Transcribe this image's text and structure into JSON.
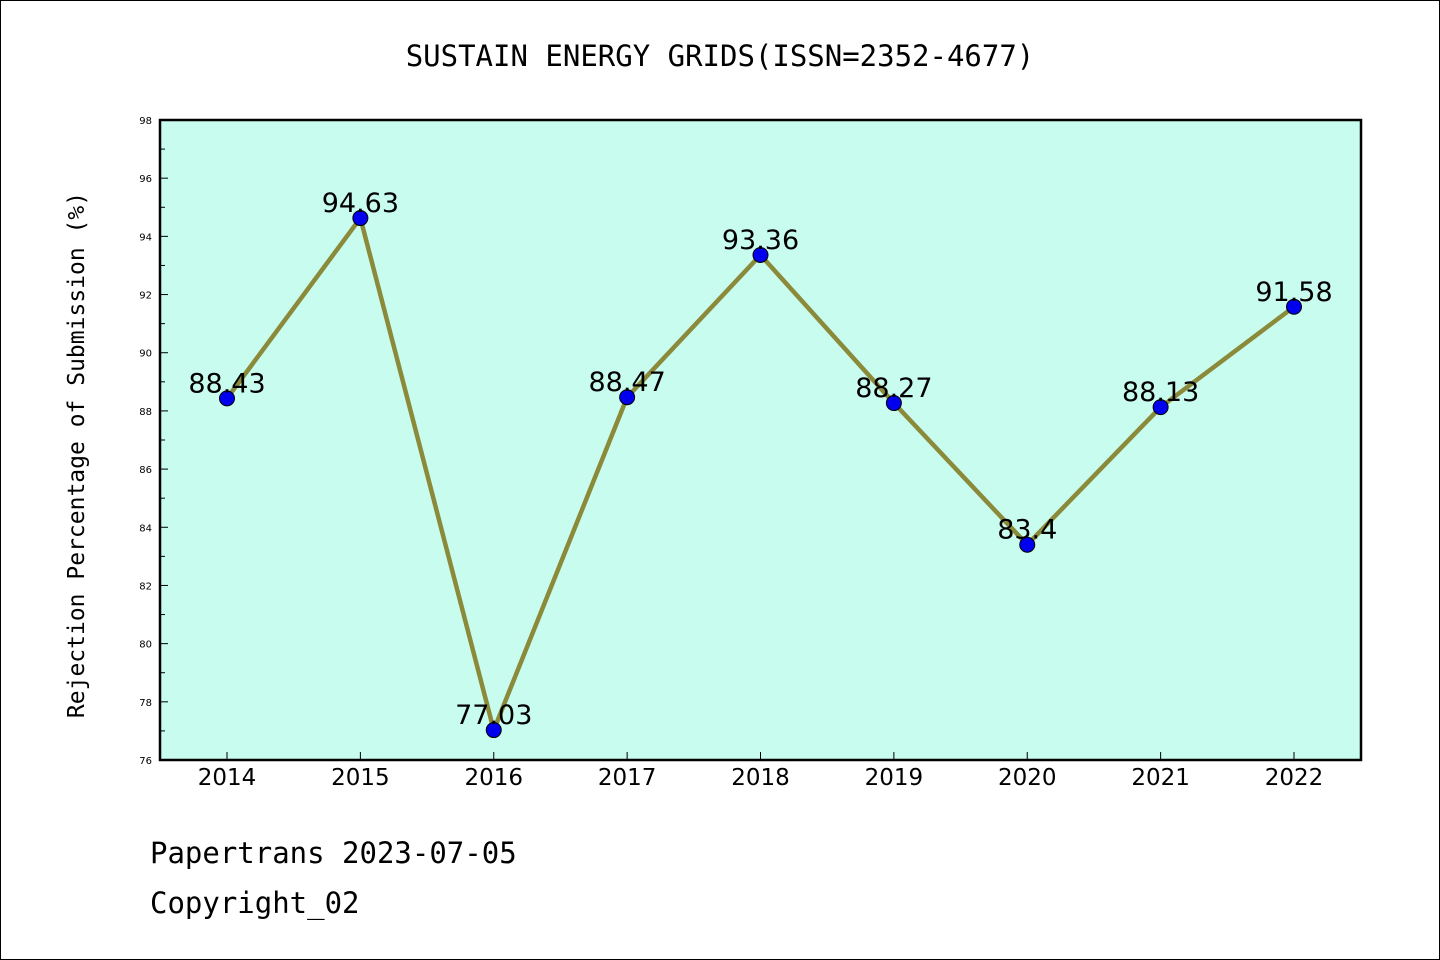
{
  "chart_data": {
    "type": "line",
    "title": "SUSTAIN ENERGY GRIDS(ISSN=2352-4677)",
    "xlabel": "",
    "ylabel": "Rejection Percentage of Submission (%)",
    "categories": [
      "2014",
      "2015",
      "2016",
      "2017",
      "2018",
      "2019",
      "2020",
      "2021",
      "2022"
    ],
    "values": [
      88.43,
      94.63,
      77.03,
      88.47,
      93.36,
      88.27,
      83.4,
      88.13,
      91.58
    ],
    "data_labels": [
      "88.43",
      "94.63",
      "77.03",
      "88.47",
      "93.36",
      "88.27",
      "83.4",
      "88.13",
      "91.58"
    ],
    "ylim": [
      76,
      98
    ],
    "yticks": [
      76,
      78,
      80,
      82,
      84,
      86,
      88,
      90,
      92,
      94,
      96,
      98
    ],
    "grid": false,
    "colors": {
      "plot_background": "#c8fcee",
      "line": "#8b8a3a",
      "marker": "#0000ee"
    }
  },
  "footer": {
    "line1": "Papertrans 2023-07-05",
    "line2": "Copyright_02"
  }
}
